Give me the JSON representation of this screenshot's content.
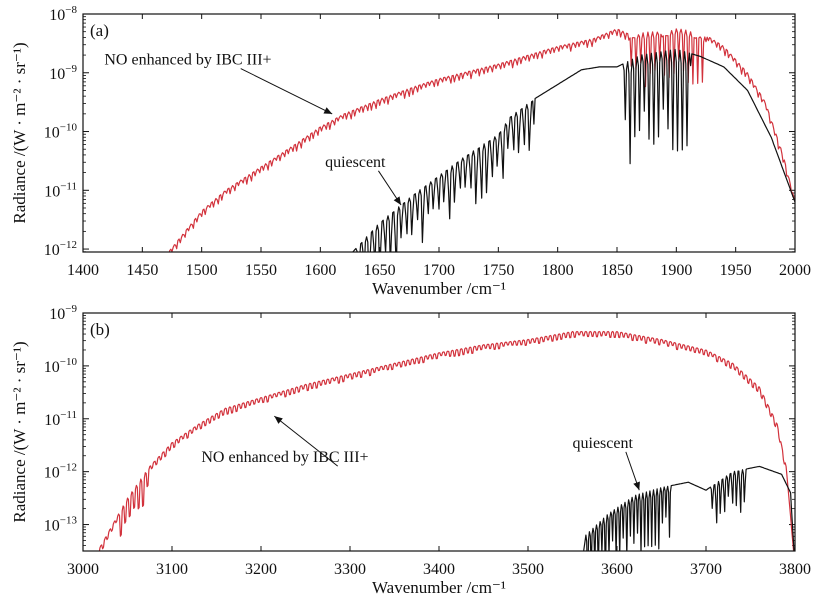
{
  "chart_data": [
    {
      "type": "line",
      "panel_label": "(a)",
      "xlabel": "Wavenumber /cm⁻¹",
      "ylabel": "Radiance /(W · m⁻² · sr⁻¹)",
      "xlim": [
        1400,
        2000
      ],
      "ylim_log10": [
        -12.05,
        -8
      ],
      "y_scale": "log",
      "xticks": [
        1400,
        1450,
        1500,
        1550,
        1600,
        1650,
        1700,
        1750,
        1800,
        1850,
        1900,
        1950,
        2000
      ],
      "yticks": [
        {
          "log10": -8,
          "mant": "10",
          "exp": "−8"
        },
        {
          "log10": -9,
          "mant": "10",
          "exp": "−9"
        },
        {
          "log10": -10,
          "mant": "10",
          "exp": "−10"
        },
        {
          "log10": -11,
          "mant": "10",
          "exp": "−11"
        },
        {
          "log10": -12,
          "mant": "10",
          "exp": "−12"
        }
      ],
      "annotations": [
        {
          "text": "NO enhanced by IBC III+",
          "text_x": 1418,
          "text_y": -8.86,
          "arrow_to_x": 1610,
          "arrow_to_y": -9.7
        },
        {
          "text": "quiescent",
          "text_x": 1604,
          "text_y": -10.6,
          "arrow_to_x": 1668,
          "arrow_to_y": -11.25
        }
      ],
      "series": [
        {
          "name": "NO enhanced by IBC III+",
          "color": "#d2323c",
          "envelope": [
            [
              1400,
              -12.2
            ],
            [
              1440,
              -12.2
            ],
            [
              1470,
              -12.1
            ],
            [
              1490,
              -11.6
            ],
            [
              1500,
              -11.35
            ],
            [
              1520,
              -11.0
            ],
            [
              1550,
              -10.6
            ],
            [
              1580,
              -10.2
            ],
            [
              1600,
              -9.92
            ],
            [
              1620,
              -9.7
            ],
            [
              1650,
              -9.45
            ],
            [
              1680,
              -9.23
            ],
            [
              1700,
              -9.1
            ],
            [
              1750,
              -8.85
            ],
            [
              1800,
              -8.55
            ],
            [
              1830,
              -8.42
            ],
            [
              1850,
              -8.25
            ],
            [
              1860,
              -8.34
            ],
            [
              1880,
              -8.3
            ],
            [
              1900,
              -8.25
            ],
            [
              1920,
              -8.3
            ],
            [
              1940,
              -8.55
            ],
            [
              1960,
              -9.0
            ],
            [
              1975,
              -9.5
            ],
            [
              1990,
              -10.4
            ],
            [
              2000,
              -11.2
            ]
          ],
          "spikes": [
            {
              "from": 1400,
              "to": 1998,
              "step": 3.5,
              "depth": 0.22
            },
            {
              "from": 1860,
              "to": 1925,
              "step": 4,
              "depth": 1.0
            }
          ]
        },
        {
          "name": "quiescent",
          "color": "#111111",
          "envelope": [
            [
              1400,
              -12.3
            ],
            [
              1600,
              -12.3
            ],
            [
              1625,
              -12.1
            ],
            [
              1650,
              -11.55
            ],
            [
              1680,
              -11.05
            ],
            [
              1700,
              -10.75
            ],
            [
              1720,
              -10.45
            ],
            [
              1750,
              -10.05
            ],
            [
              1760,
              -9.75
            ],
            [
              1780,
              -9.45
            ],
            [
              1800,
              -9.2
            ],
            [
              1820,
              -8.95
            ],
            [
              1835,
              -8.9
            ],
            [
              1850,
              -8.9
            ],
            [
              1870,
              -8.7
            ],
            [
              1900,
              -8.6
            ],
            [
              1920,
              -8.72
            ],
            [
              1940,
              -8.9
            ],
            [
              1960,
              -9.3
            ],
            [
              1980,
              -10.1
            ],
            [
              2000,
              -11.2
            ]
          ],
          "spikes": [
            {
              "from": 1630,
              "to": 1780,
              "step": 4.5,
              "depth": 1.5
            },
            {
              "from": 1855,
              "to": 1912,
              "step": 4,
              "depth": 1.9
            }
          ]
        }
      ]
    },
    {
      "type": "line",
      "panel_label": "(b)",
      "xlabel": "Wavenumber /cm⁻¹",
      "ylabel": "Radiance /(W · m⁻² · sr⁻¹)",
      "xlim": [
        3000,
        3800
      ],
      "ylim_log10": [
        -13.5,
        -9
      ],
      "y_scale": "log",
      "xticks": [
        3000,
        3100,
        3200,
        3300,
        3400,
        3500,
        3600,
        3700,
        3800
      ],
      "yticks": [
        {
          "log10": -9,
          "mant": "10",
          "exp": "−9"
        },
        {
          "log10": -10,
          "mant": "10",
          "exp": "−10"
        },
        {
          "log10": -11,
          "mant": "10",
          "exp": "−11"
        },
        {
          "log10": -12,
          "mant": "10",
          "exp": "−12"
        },
        {
          "log10": -13,
          "mant": "10",
          "exp": "−13"
        }
      ],
      "annotations": [
        {
          "text": "NO enhanced by IBC III+",
          "text_x": 3133,
          "text_y": -11.82,
          "arrow_to_x": 3215,
          "arrow_to_y": -10.95
        },
        {
          "text": "quiescent",
          "text_x": 3550,
          "text_y": -11.55,
          "arrow_to_x": 3625,
          "arrow_to_y": -12.35
        }
      ],
      "series": [
        {
          "name": "NO enhanced by IBC III+",
          "color": "#d2323c",
          "envelope": [
            [
              3000,
              -13.8
            ],
            [
              3010,
              -13.7
            ],
            [
              3030,
              -13.1
            ],
            [
              3050,
              -12.5
            ],
            [
              3075,
              -11.9
            ],
            [
              3100,
              -11.45
            ],
            [
              3130,
              -11.1
            ],
            [
              3160,
              -10.8
            ],
            [
              3200,
              -10.6
            ],
            [
              3250,
              -10.35
            ],
            [
              3300,
              -10.15
            ],
            [
              3350,
              -9.95
            ],
            [
              3400,
              -9.75
            ],
            [
              3450,
              -9.6
            ],
            [
              3500,
              -9.5
            ],
            [
              3550,
              -9.35
            ],
            [
              3600,
              -9.35
            ],
            [
              3650,
              -9.5
            ],
            [
              3700,
              -9.7
            ],
            [
              3730,
              -9.95
            ],
            [
              3760,
              -10.4
            ],
            [
              3780,
              -11.1
            ],
            [
              3790,
              -11.9
            ],
            [
              3800,
              -13.8
            ]
          ],
          "spikes": [
            {
              "from": 3005,
              "to": 3790,
              "step": 5,
              "depth": 0.25
            },
            {
              "from": 3040,
              "to": 3075,
              "step": 5,
              "depth": 1.2
            }
          ]
        },
        {
          "name": "quiescent",
          "color": "#111111",
          "envelope": [
            [
              3000,
              -13.8
            ],
            [
              3560,
              -13.8
            ],
            [
              3565,
              -13.2
            ],
            [
              3590,
              -12.8
            ],
            [
              3620,
              -12.45
            ],
            [
              3650,
              -12.3
            ],
            [
              3680,
              -12.2
            ],
            [
              3700,
              -12.35
            ],
            [
              3730,
              -12.0
            ],
            [
              3760,
              -11.9
            ],
            [
              3785,
              -12.05
            ],
            [
              3795,
              -12.4
            ],
            [
              3800,
              -13.8
            ]
          ],
          "spikes": [
            {
              "from": 3565,
              "to": 3660,
              "step": 4,
              "depth": 1.2
            },
            {
              "from": 3705,
              "to": 3745,
              "step": 4.5,
              "depth": 1.2
            }
          ]
        }
      ]
    }
  ]
}
